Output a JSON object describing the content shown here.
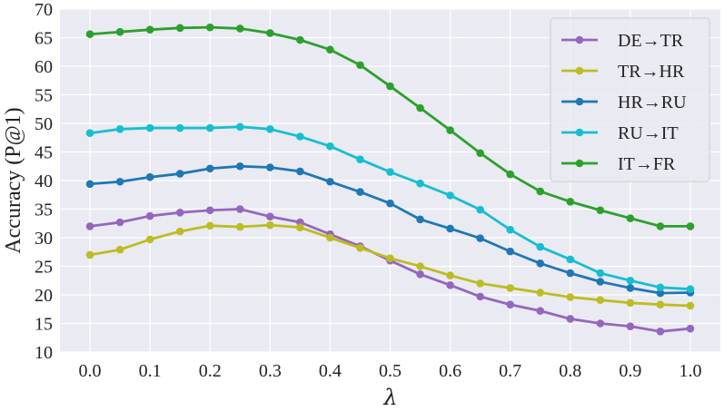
{
  "chart_data": {
    "type": "line",
    "title": "",
    "xlabel": "λ",
    "ylabel": "Accuracy (P@1)",
    "xlim": [
      -0.05,
      1.05
    ],
    "ylim": [
      10,
      70
    ],
    "xticks": [
      "0.0",
      "0.1",
      "0.2",
      "0.3",
      "0.4",
      "0.5",
      "0.6",
      "0.7",
      "0.8",
      "0.9",
      "1.0"
    ],
    "yticks": [
      "10",
      "15",
      "20",
      "25",
      "30",
      "35",
      "40",
      "45",
      "50",
      "55",
      "60",
      "65",
      "70"
    ],
    "grid": true,
    "legend_position": "top-right",
    "x": [
      0.0,
      0.05,
      0.1,
      0.15,
      0.2,
      0.25,
      0.3,
      0.35,
      0.4,
      0.45,
      0.5,
      0.55,
      0.6,
      0.65,
      0.7,
      0.75,
      0.8,
      0.85,
      0.9,
      0.95,
      1.0
    ],
    "series": [
      {
        "name": "DE→TR",
        "color": "#9467bd",
        "values": [
          32.0,
          32.7,
          33.8,
          34.4,
          34.8,
          35.0,
          33.7,
          32.7,
          30.6,
          28.5,
          26.0,
          23.6,
          21.7,
          19.7,
          18.3,
          17.2,
          15.8,
          15.0,
          14.5,
          13.6,
          14.1
        ]
      },
      {
        "name": "TR→HR",
        "color": "#bcbd22",
        "values": [
          27.0,
          27.9,
          29.7,
          31.1,
          32.1,
          31.9,
          32.2,
          31.8,
          30.0,
          28.2,
          26.4,
          25.0,
          23.4,
          22.0,
          21.2,
          20.4,
          19.6,
          19.1,
          18.6,
          18.3,
          18.1
        ]
      },
      {
        "name": "HR→RU",
        "color": "#1f77b4",
        "values": [
          39.4,
          39.8,
          40.6,
          41.2,
          42.1,
          42.5,
          42.3,
          41.6,
          39.8,
          38.0,
          36.0,
          33.2,
          31.6,
          29.9,
          27.6,
          25.5,
          23.8,
          22.3,
          21.2,
          20.3,
          20.4
        ]
      },
      {
        "name": "RU→IT",
        "color": "#17becf",
        "values": [
          48.3,
          49.0,
          49.2,
          49.2,
          49.2,
          49.4,
          49.0,
          47.7,
          46.0,
          43.7,
          41.5,
          39.5,
          37.4,
          34.9,
          31.4,
          28.4,
          26.2,
          23.8,
          22.5,
          21.3,
          21.0
        ]
      },
      {
        "name": "IT→FR",
        "color": "#2ca02c",
        "values": [
          65.6,
          66.0,
          66.4,
          66.7,
          66.8,
          66.6,
          65.8,
          64.6,
          62.9,
          60.2,
          56.5,
          52.7,
          48.8,
          44.8,
          41.1,
          38.1,
          36.3,
          34.8,
          33.4,
          32.0,
          32.0
        ]
      }
    ]
  }
}
